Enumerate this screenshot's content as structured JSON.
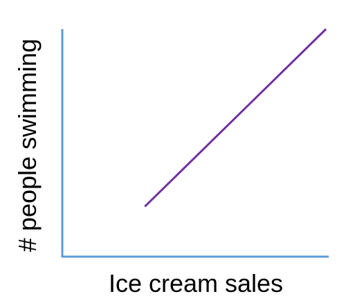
{
  "chart_data": {
    "type": "line",
    "title": "",
    "xlabel": "Ice cream sales",
    "ylabel": "# people swimming",
    "xlim": [
      0,
      10
    ],
    "ylim": [
      0,
      10
    ],
    "grid": false,
    "series": [
      {
        "x": [
          3.1,
          9.9
        ],
        "y": [
          2.2,
          10.0
        ]
      }
    ]
  },
  "colors": {
    "axis": "#5B9BD5",
    "line": "#7030A0",
    "text": "#000000"
  }
}
